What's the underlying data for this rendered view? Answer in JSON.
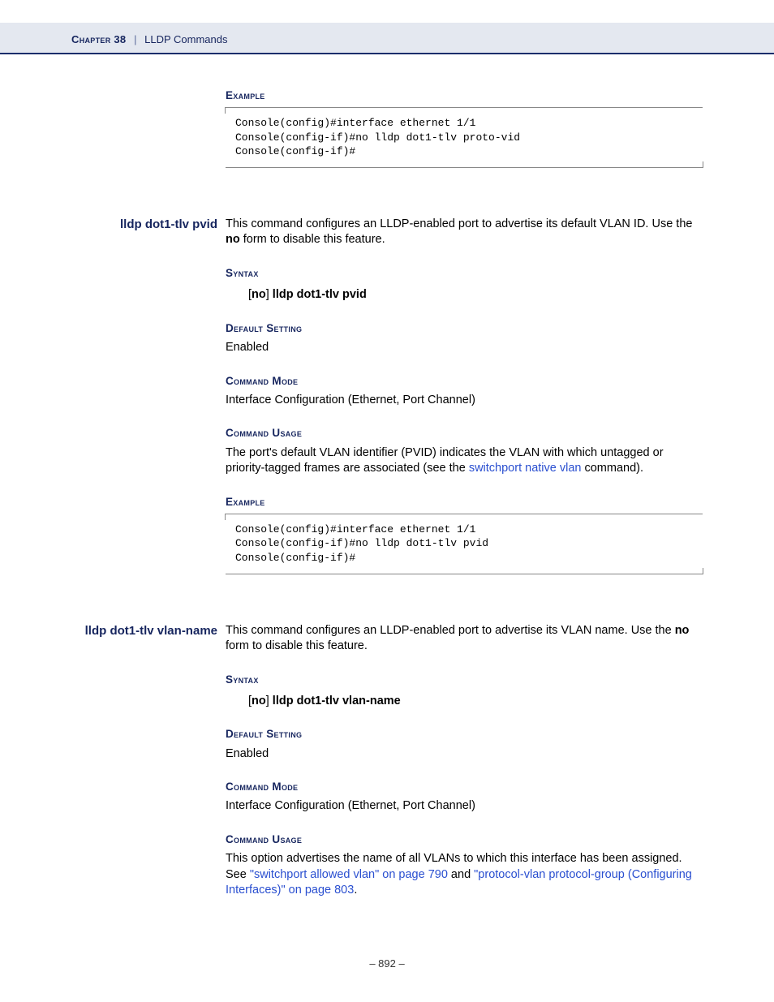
{
  "header": {
    "chapter_label": "Chapter 38",
    "separator": "|",
    "title": "LLDP Commands"
  },
  "sections": {
    "example1": {
      "heading": "Example",
      "code": "Console(config)#interface ethernet 1/1\nConsole(config-if)#no lldp dot1-tlv proto-vid\nConsole(config-if)#"
    },
    "cmd_pvid": {
      "name": "lldp dot1-tlv pvid",
      "description_pre": "This command configures an LLDP-enabled port to advertise its default VLAN ID. Use the ",
      "description_bold": "no",
      "description_post": " form to disable this feature.",
      "syntax_heading": "Syntax",
      "syntax_lbracket": "[",
      "syntax_no": "no",
      "syntax_rbracket": "]",
      "syntax_cmd": " lldp dot1-tlv pvid",
      "default_heading": "Default Setting",
      "default_value": "Enabled",
      "mode_heading": "Command Mode",
      "mode_value": "Interface Configuration (Ethernet, Port Channel)",
      "usage_heading": "Command Usage",
      "usage_pre": "The port's default VLAN identifier (PVID) indicates the VLAN with which untagged or priority-tagged frames are associated (see the ",
      "usage_link": "switchport native vlan",
      "usage_post": " command).",
      "example_heading": "Example",
      "example_code": "Console(config)#interface ethernet 1/1\nConsole(config-if)#no lldp dot1-tlv pvid\nConsole(config-if)#"
    },
    "cmd_vlanname": {
      "name": "lldp dot1-tlv vlan-name",
      "description_pre": "This command configures an LLDP-enabled port to advertise its VLAN name. Use the ",
      "description_bold": "no",
      "description_post": " form to disable this feature.",
      "syntax_heading": "Syntax",
      "syntax_lbracket": "[",
      "syntax_no": "no",
      "syntax_rbracket": "]",
      "syntax_cmd": " lldp dot1-tlv vlan-name",
      "default_heading": "Default Setting",
      "default_value": "Enabled",
      "mode_heading": "Command Mode",
      "mode_value": "Interface Configuration (Ethernet, Port Channel)",
      "usage_heading": "Command Usage",
      "usage_pre": "This option advertises the name of all VLANs to which this interface has been assigned. See ",
      "usage_link1": "\"switchport allowed vlan\" on page 790",
      "usage_mid": " and ",
      "usage_link2": "\"protocol-vlan protocol-group (Configuring Interfaces)\" on page 803",
      "usage_post": "."
    }
  },
  "page_number": "–  892  –"
}
